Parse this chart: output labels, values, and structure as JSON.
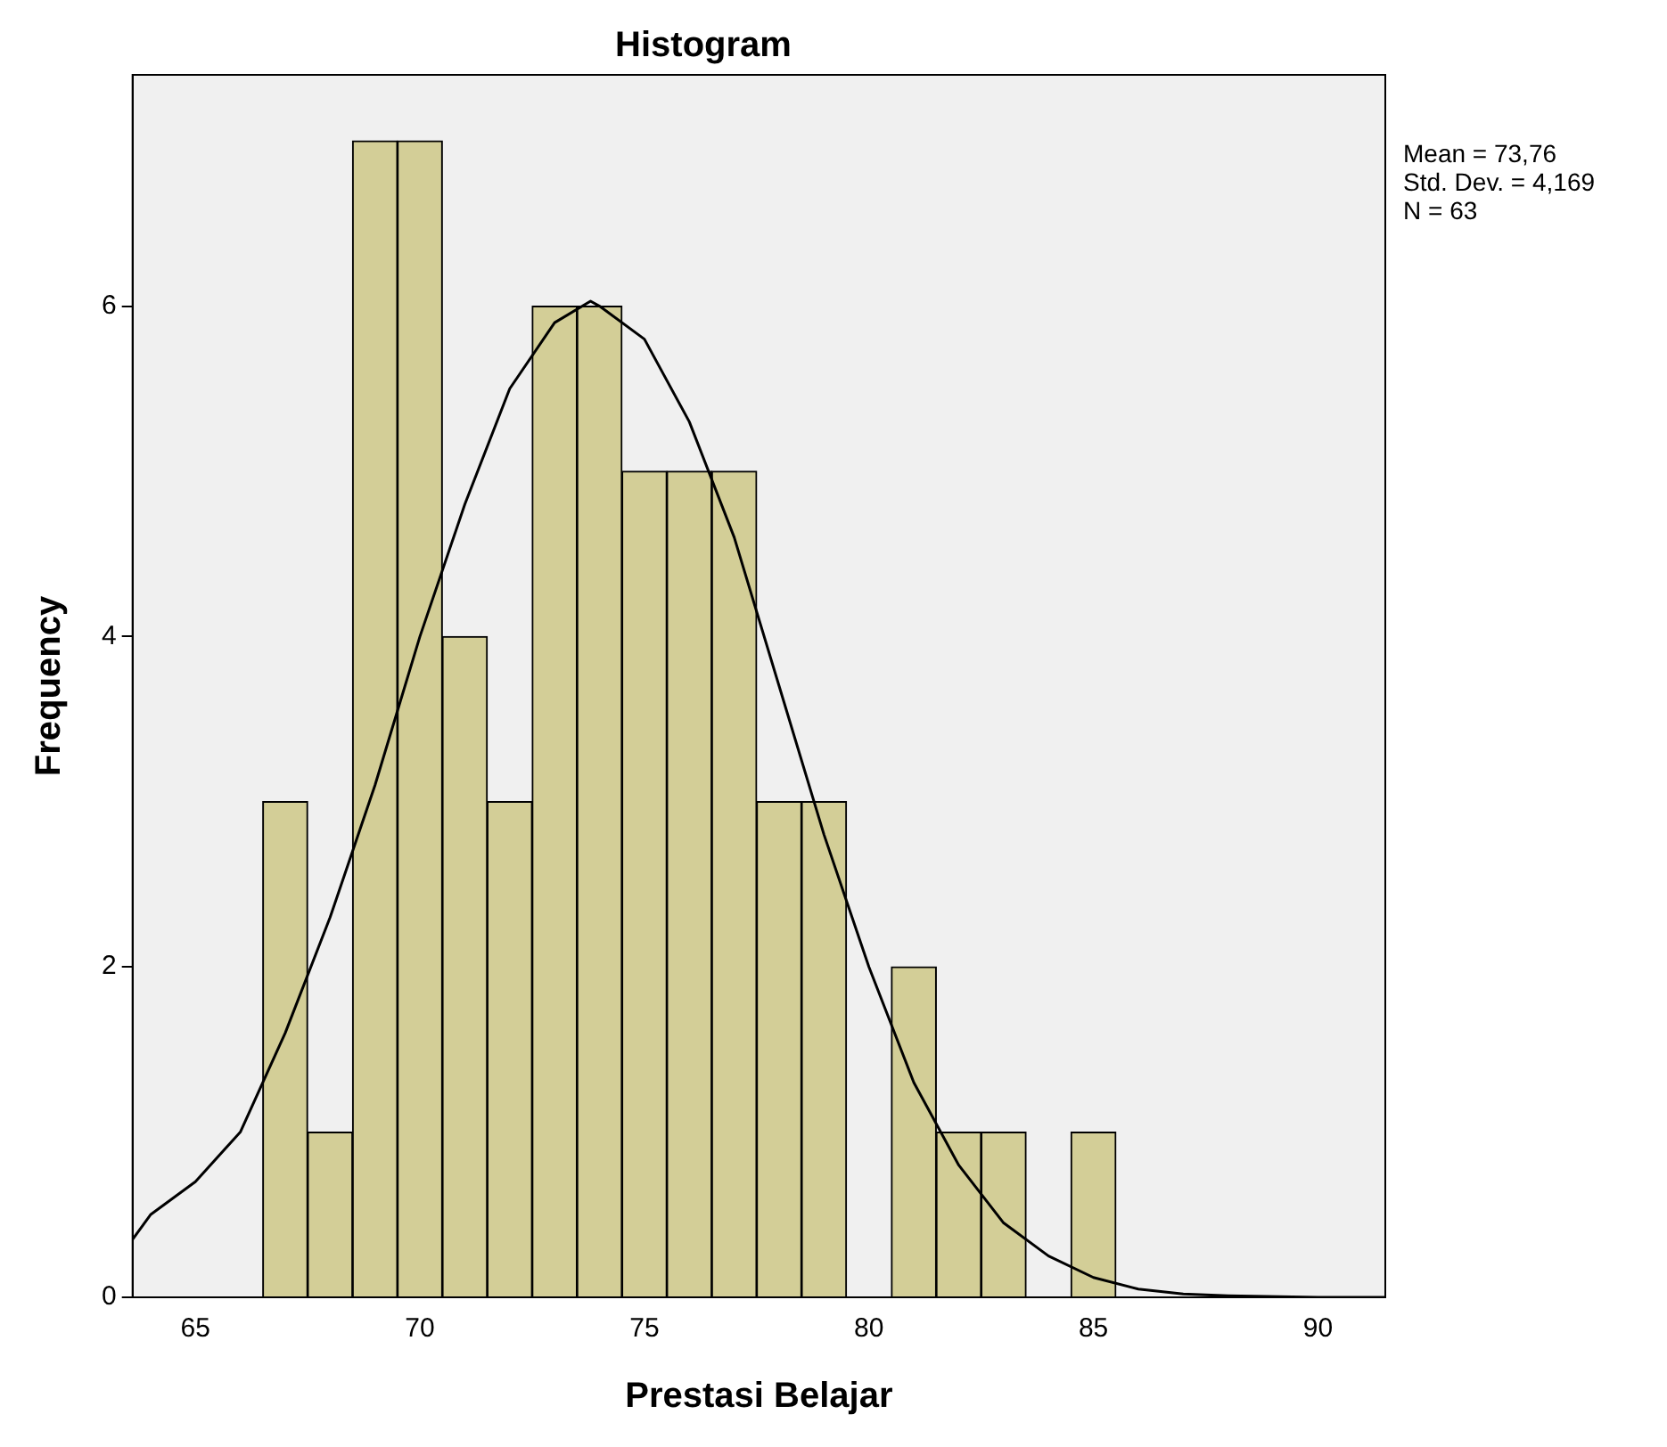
{
  "chart_data": {
    "type": "histogram",
    "title": "Histogram",
    "xlabel": "Prestasi Belajar",
    "ylabel": "Frequency",
    "bins": [
      66.5,
      67.5,
      68.5,
      69.5,
      70.5,
      71.5,
      72.5,
      73.5,
      74.5,
      75.5,
      76.5,
      77.5,
      78.5,
      79.5,
      80.5,
      81.5,
      82.5,
      83.5,
      84.5,
      85.5
    ],
    "values": [
      3,
      1,
      7,
      7,
      4,
      3,
      6,
      6,
      5,
      5,
      5,
      3,
      3,
      0,
      2,
      1,
      1,
      0,
      1
    ],
    "color": "#d3ce97",
    "series": [
      {
        "type": "line",
        "color": "#000000",
        "x": [
          63.6,
          64,
          65,
          66,
          67,
          68,
          69,
          70,
          71,
          72,
          73,
          73.8,
          74,
          75,
          76,
          77,
          78,
          79,
          80,
          81,
          82,
          83,
          84,
          85,
          86,
          87,
          88,
          90,
          91.5
        ],
        "values": [
          0.35,
          0.5,
          0.7,
          1.0,
          1.6,
          2.3,
          3.1,
          4.0,
          4.8,
          5.5,
          5.9,
          6.03,
          6.0,
          5.8,
          5.3,
          4.6,
          3.7,
          2.8,
          2.0,
          1.3,
          0.8,
          0.45,
          0.25,
          0.12,
          0.05,
          0.02,
          0.01,
          0,
          0
        ]
      }
    ],
    "xlim": [
      63.6,
      91.5
    ],
    "xticks": [
      65,
      70,
      75,
      80,
      85,
      90
    ],
    "ylim": [
      0,
      7.4
    ],
    "yticks": [
      0,
      2,
      4,
      6
    ],
    "grid": false,
    "legend": false,
    "marker": "none",
    "annotations": [
      "Mean = 73,76",
      "Std. Dev. = 4,169",
      "N = 63"
    ]
  }
}
